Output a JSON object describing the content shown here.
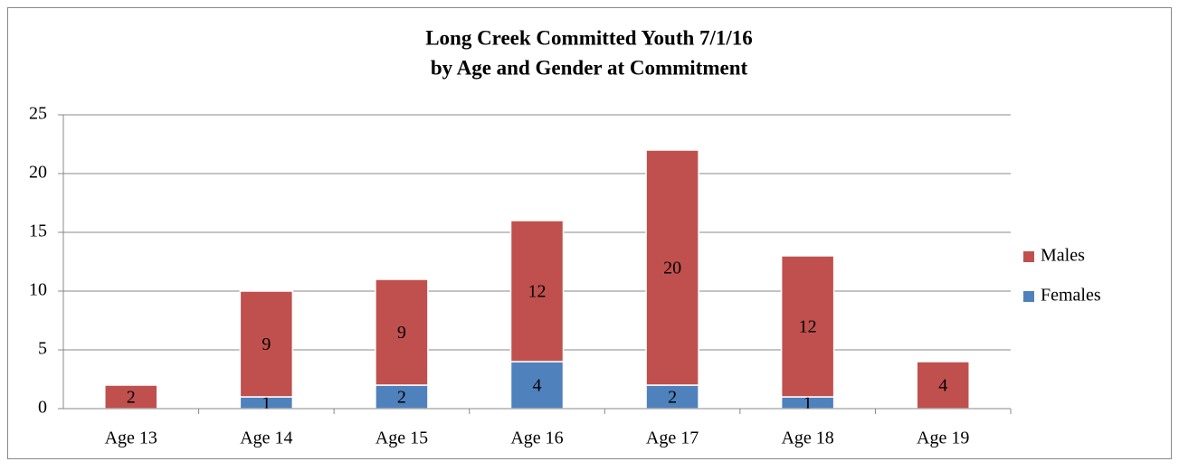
{
  "chart_data": {
    "type": "stacked_bar",
    "title": "Long Creek Committed Youth 7/1/16",
    "subtitle": "by Age and Gender at Commitment",
    "categories": [
      "Age 13",
      "Age 14",
      "Age 15",
      "Age 16",
      "Age 17",
      "Age 18",
      "Age 19"
    ],
    "series": [
      {
        "name": "Females",
        "color": "#4f81bd",
        "values": [
          0,
          1,
          2,
          4,
          2,
          1,
          0
        ]
      },
      {
        "name": "Males",
        "color": "#c0504d",
        "values": [
          2,
          9,
          9,
          12,
          20,
          12,
          4
        ]
      }
    ],
    "ylim": [
      0,
      25
    ],
    "yticks": [
      0,
      5,
      10,
      15,
      20,
      25
    ],
    "grid": true,
    "legend": "right"
  }
}
